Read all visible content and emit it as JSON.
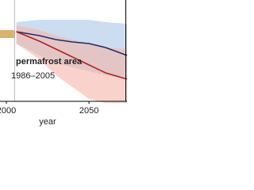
{
  "chart_data": {
    "type": "line",
    "x_label": "year",
    "legend_title": "permafrost area",
    "legend_subtitle": "1986–2005",
    "x": [
      2006,
      2020,
      2030,
      2040,
      2050,
      2060,
      2073
    ],
    "xlim": [
      1996,
      2073
    ],
    "ylim": [
      -90,
      40
    ],
    "xticks": [
      2000,
      2050
    ],
    "reference_band": {
      "x": [
        1996,
        2005
      ],
      "low": -8,
      "high": 2,
      "color": "#d9b36b"
    },
    "series": [
      {
        "color": "#1f2d6b",
        "band_color": "#a9c6e8",
        "values": [
          0,
          -5,
          -10,
          -13,
          -15,
          -20,
          -30
        ],
        "high": [
          12,
          15,
          15,
          15,
          15,
          12,
          10
        ],
        "low": [
          -15,
          -30,
          -40,
          -45,
          -50,
          -55,
          -60
        ]
      },
      {
        "color": "#b22222",
        "band_color": "#f5b5a8",
        "values": [
          0,
          -12,
          -22,
          -32,
          -42,
          -52,
          -60
        ],
        "high": [
          8,
          2,
          -5,
          -10,
          -15,
          -20,
          -22
        ],
        "low": [
          -15,
          -35,
          -55,
          -70,
          -85,
          -90,
          -90
        ]
      }
    ]
  }
}
